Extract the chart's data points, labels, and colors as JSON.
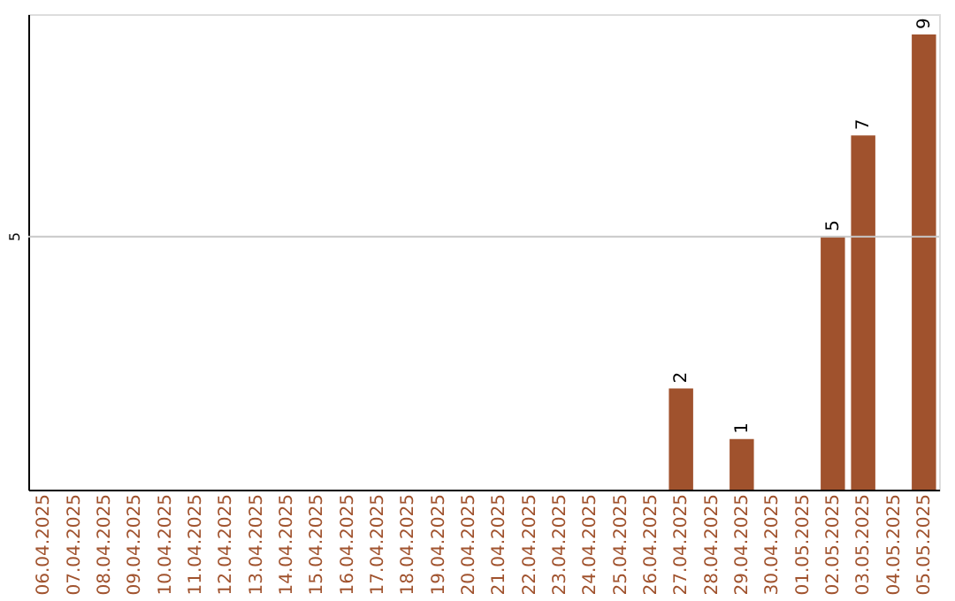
{
  "chart_data": {
    "type": "bar",
    "categories": [
      "06.04.2025",
      "07.04.2025",
      "08.04.2025",
      "09.04.2025",
      "10.04.2025",
      "11.04.2025",
      "12.04.2025",
      "13.04.2025",
      "14.04.2025",
      "15.04.2025",
      "16.04.2025",
      "17.04.2025",
      "18.04.2025",
      "19.04.2025",
      "20.04.2025",
      "21.04.2025",
      "22.04.2025",
      "23.04.2025",
      "24.04.2025",
      "25.04.2025",
      "26.04.2025",
      "27.04.2025",
      "28.04.2025",
      "29.04.2025",
      "30.04.2025",
      "01.05.2025",
      "02.05.2025",
      "03.05.2025",
      "04.05.2025",
      "05.05.2025"
    ],
    "values": [
      null,
      null,
      null,
      null,
      null,
      null,
      null,
      null,
      null,
      null,
      null,
      null,
      null,
      null,
      null,
      null,
      null,
      null,
      null,
      null,
      null,
      2,
      null,
      1,
      null,
      null,
      5,
      7,
      null,
      9
    ],
    "data_labels": true,
    "color": "#a0522d",
    "ylim": [
      0,
      9.4
    ],
    "ref_lines": [
      {
        "axis": "y",
        "value": 5,
        "label": "5",
        "color": "#c8c8c8"
      }
    ]
  }
}
